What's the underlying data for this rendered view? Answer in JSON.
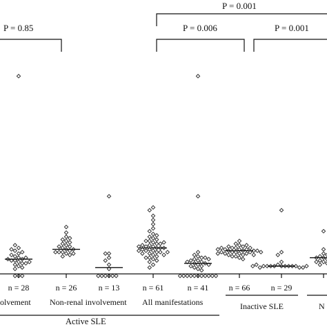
{
  "chart_data": {
    "type": "scatter",
    "style": "dot-strip plot with median bars",
    "colors": {
      "marker_stroke": "#333333",
      "marker_fill": "#ffffff",
      "line": "#111111"
    },
    "groups": [
      {
        "id": "g1",
        "label": "n = 28",
        "values": [
          1.6,
          1.0,
          2.3,
          1.9,
          1.4,
          1.2,
          2.1,
          1.7,
          1.5,
          2.0,
          2.5,
          0.8,
          1.3,
          1.8,
          1.1,
          0.9,
          1.6,
          1.4,
          1.2,
          2.2,
          1.5,
          1.3,
          0.3,
          0.3,
          0.3,
          14.6
        ],
        "median": 1.5
      },
      {
        "id": "g2",
        "label": "n = 26",
        "values": [
          3.8,
          3.4,
          3.1,
          2.9,
          2.8,
          2.6,
          2.5,
          2.4,
          2.3,
          2.2,
          2.1,
          2.0,
          2.0,
          1.9,
          1.8,
          1.7,
          3.0,
          2.7,
          2.4,
          2.2,
          2.0,
          1.9
        ],
        "median": 2.2
      },
      {
        "id": "g3",
        "label": "n = 13",
        "values": [
          6.0,
          1.9,
          1.9,
          1.6,
          1.4,
          1.1,
          0.8,
          0.3,
          0.3,
          0.3,
          0.3,
          0.3,
          0.3
        ],
        "median": 0.9
      },
      {
        "id": "g4",
        "label": "n = 61",
        "values": [
          5.2,
          5.0,
          4.6,
          4.3,
          4.0,
          3.7,
          3.5,
          3.3,
          3.1,
          3.0,
          2.9,
          2.8,
          2.7,
          2.6,
          2.5,
          2.4,
          2.4,
          2.3,
          2.3,
          2.2,
          2.2,
          2.1,
          2.1,
          2.0,
          2.0,
          1.9,
          1.8,
          1.7,
          1.6,
          1.5,
          1.4,
          1.3,
          1.1,
          0.9,
          2.5,
          2.6,
          2.3,
          2.1,
          1.9,
          2.8,
          3.2,
          1.6,
          1.8,
          2.0,
          2.4,
          2.7
        ],
        "median": 2.3
      },
      {
        "id": "g5",
        "label": "n = 41",
        "values": [
          14.6,
          6.0,
          2.0,
          1.8,
          1.7,
          1.6,
          1.5,
          1.4,
          1.4,
          1.3,
          1.2,
          1.2,
          1.1,
          1.0,
          1.0,
          0.9,
          0.8,
          0.7,
          1.3,
          1.1,
          1.6,
          1.5,
          0.3,
          0.3,
          0.3,
          0.3,
          0.3,
          0.3,
          0.3,
          0.3,
          0.3,
          0.3,
          0.3
        ],
        "median": 1.2
      },
      {
        "id": "g6",
        "label": "n = 66",
        "values": [
          2.8,
          2.6,
          2.5,
          2.4,
          2.3,
          2.3,
          2.2,
          2.2,
          2.1,
          2.1,
          2.0,
          2.0,
          2.0,
          1.9,
          1.9,
          1.8,
          1.8,
          1.7,
          1.6,
          1.5,
          2.4,
          2.2,
          2.1,
          1.9,
          2.3,
          2.0,
          1.8,
          2.5,
          2.1,
          1.9,
          2.2,
          2.0,
          1.7,
          2.3
        ],
        "median": 2.1
      },
      {
        "id": "g7",
        "label": "n = 29",
        "values": [
          5.0,
          2.0,
          1.8,
          1.3,
          1.1,
          1.0,
          1.0,
          1.0,
          1.0,
          1.0,
          1.0,
          1.0,
          1.0,
          1.0,
          0.9,
          0.9,
          0.9,
          1.1,
          1.0,
          1.0
        ],
        "median": 1.0
      },
      {
        "id": "g8",
        "label": "",
        "values": [
          3.5,
          2.2,
          1.9,
          1.7,
          1.6,
          1.5,
          1.4,
          1.3,
          1.2,
          1.1,
          1.8,
          1.6,
          1.4,
          1.3
        ],
        "median": 1.6
      }
    ],
    "group_labels": [
      {
        "text": "olvement",
        "level": 1
      },
      {
        "text": "Non-renal involvement",
        "level": 1
      },
      {
        "text": "All manifestations",
        "level": 1
      },
      {
        "text": "Inactive SLE",
        "level": 1
      },
      {
        "text": "N",
        "level": 1
      },
      {
        "text": "Active SLE",
        "level": 2
      }
    ],
    "comparisons": [
      {
        "label": "P = 0.85",
        "p": 0.85,
        "from": "g1",
        "to": "g2"
      },
      {
        "label": "P = 0.006",
        "p": 0.006,
        "from": "g4",
        "to": "g6"
      },
      {
        "label": "P = 0.001",
        "p": 0.001,
        "from": "g6",
        "to": "g8"
      },
      {
        "label": "P = 0.001",
        "p": 0.001,
        "from": "g4",
        "to": "g8"
      }
    ],
    "ylim": [
      0,
      16
    ],
    "xlabel": "",
    "ylabel": "",
    "grid": false,
    "legend": "none"
  }
}
